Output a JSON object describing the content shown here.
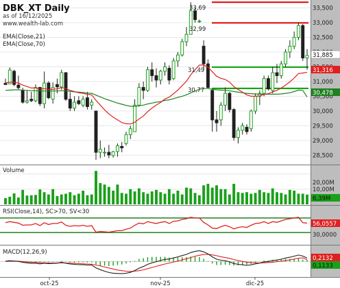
{
  "price_pane": {
    "title": "DBK_XT Daily",
    "date_note": "as of 16/12/2025",
    "watermark": "www.wealth-lab.com",
    "legend": [
      "EMA(Close,21)",
      "EMA(Close,70)"
    ],
    "level_labels": [
      "33,69",
      "32,99",
      "31,49",
      "30,77"
    ],
    "axis_ticks": [
      "33,500",
      "33,000",
      "32,500",
      "32,000",
      "31,500",
      "31,000",
      "30,500",
      "30,000",
      "29,500",
      "29,000",
      "28,500"
    ],
    "price_badge": "31,885",
    "ema21_badge": "31,316",
    "ema70_badge": "30,478"
  },
  "volume_pane": {
    "label": "Volume",
    "tick": "20,00M",
    "tick2": "10,00M",
    "badge": "6,39M"
  },
  "rsi_pane": {
    "label": "RSI(Close,14), SC>70, SV<30",
    "tick": "30,0000",
    "badge": "56,0557"
  },
  "macd_pane": {
    "label": "MACD(12,26,9)",
    "badge_macd": "0,2132",
    "badge_signal": "0,1133"
  },
  "x_axis": {
    "labels": [
      "oct-25",
      "nov-25",
      "dic-25"
    ]
  },
  "colors": {
    "up": "#1aa01a",
    "down": "#202020",
    "ema21": "#e02020",
    "ema70": "#208020",
    "level_red": "#e00000",
    "level_green": "#00a000",
    "volume": "#1aa01a",
    "rsi": "#e02020",
    "rsi_band": "#208020",
    "macd": "#202020",
    "signal": "#e02020",
    "hist": "#1aa01a",
    "axis_bg": "#bdbdbd"
  },
  "chart_data": {
    "type": "candlestick",
    "title": "DBK_XT Daily",
    "y_range": [
      28300,
      33650
    ],
    "candles": [
      {
        "o": 30940,
        "h": 31100,
        "l": 30880,
        "c": 30900
      },
      {
        "o": 30920,
        "h": 31480,
        "l": 30950,
        "c": 31390
      },
      {
        "o": 31350,
        "h": 31400,
        "l": 30840,
        "c": 30900
      },
      {
        "o": 30880,
        "h": 31200,
        "l": 30740,
        "c": 30790
      },
      {
        "o": 30700,
        "h": 30790,
        "l": 30250,
        "c": 30300
      },
      {
        "o": 30300,
        "h": 30690,
        "l": 30250,
        "c": 30350
      },
      {
        "o": 30400,
        "h": 30650,
        "l": 30300,
        "c": 30350
      },
      {
        "o": 30350,
        "h": 30900,
        "l": 30300,
        "c": 30800
      },
      {
        "o": 30800,
        "h": 30820,
        "l": 30170,
        "c": 30250
      },
      {
        "o": 30250,
        "h": 31340,
        "l": 30090,
        "c": 30950
      },
      {
        "o": 30950,
        "h": 31010,
        "l": 30400,
        "c": 30450
      },
      {
        "o": 30400,
        "h": 30970,
        "l": 30250,
        "c": 30800
      },
      {
        "o": 30900,
        "h": 31100,
        "l": 30600,
        "c": 30820
      },
      {
        "o": 30820,
        "h": 31400,
        "l": 30720,
        "c": 31300
      },
      {
        "o": 31300,
        "h": 31320,
        "l": 30340,
        "c": 30400
      },
      {
        "o": 30400,
        "h": 30640,
        "l": 30000,
        "c": 30100
      },
      {
        "o": 30100,
        "h": 30500,
        "l": 30000,
        "c": 30300
      },
      {
        "o": 30350,
        "h": 30500,
        "l": 30200,
        "c": 30250
      },
      {
        "o": 30200,
        "h": 30500,
        "l": 30130,
        "c": 30400
      },
      {
        "o": 30450,
        "h": 30650,
        "l": 30050,
        "c": 30150
      },
      {
        "o": 30200,
        "h": 30400,
        "l": 30050,
        "c": 30300
      },
      {
        "o": 30000,
        "h": 30010,
        "l": 28340,
        "c": 28600
      },
      {
        "o": 28600,
        "h": 29000,
        "l": 28400,
        "c": 28700
      },
      {
        "o": 28600,
        "h": 28760,
        "l": 28450,
        "c": 28600
      },
      {
        "o": 28600,
        "h": 28850,
        "l": 28400,
        "c": 28510
      },
      {
        "o": 28490,
        "h": 28650,
        "l": 28420,
        "c": 28620
      },
      {
        "o": 28630,
        "h": 28900,
        "l": 28450,
        "c": 28820
      },
      {
        "o": 28800,
        "h": 28950,
        "l": 28600,
        "c": 28750
      },
      {
        "o": 28900,
        "h": 29300,
        "l": 28830,
        "c": 29200
      },
      {
        "o": 29200,
        "h": 29500,
        "l": 29050,
        "c": 29400
      },
      {
        "o": 29300,
        "h": 30400,
        "l": 29290,
        "c": 30200
      },
      {
        "o": 30200,
        "h": 30950,
        "l": 30150,
        "c": 30800
      },
      {
        "o": 30800,
        "h": 31000,
        "l": 30400,
        "c": 30700
      },
      {
        "o": 30700,
        "h": 31500,
        "l": 30650,
        "c": 31400
      },
      {
        "o": 31400,
        "h": 31650,
        "l": 31000,
        "c": 31200
      },
      {
        "o": 31200,
        "h": 31450,
        "l": 30800,
        "c": 31050
      },
      {
        "o": 31050,
        "h": 31400,
        "l": 30900,
        "c": 31350
      },
      {
        "o": 31350,
        "h": 31650,
        "l": 31200,
        "c": 31500
      },
      {
        "o": 31450,
        "h": 31550,
        "l": 30900,
        "c": 31050
      },
      {
        "o": 31100,
        "h": 31800,
        "l": 31050,
        "c": 31700
      },
      {
        "o": 31700,
        "h": 32000,
        "l": 31500,
        "c": 31900
      },
      {
        "o": 31900,
        "h": 32450,
        "l": 31850,
        "c": 32350
      },
      {
        "o": 32350,
        "h": 32850,
        "l": 32200,
        "c": 32600
      },
      {
        "o": 32600,
        "h": 33690,
        "l": 32600,
        "c": 33400
      },
      {
        "o": 33400,
        "h": 33500,
        "l": 33000,
        "c": 33100
      },
      {
        "o": 33050,
        "h": 33100,
        "l": 32990,
        "c": 33050
      },
      {
        "o": 32200,
        "h": 32400,
        "l": 31400,
        "c": 31600
      },
      {
        "o": 31600,
        "h": 31750,
        "l": 30770,
        "c": 30800
      },
      {
        "o": 30700,
        "h": 30750,
        "l": 29300,
        "c": 29700
      },
      {
        "o": 29700,
        "h": 30000,
        "l": 29300,
        "c": 29600
      },
      {
        "o": 29700,
        "h": 30300,
        "l": 29500,
        "c": 30200
      },
      {
        "o": 30200,
        "h": 30800,
        "l": 30000,
        "c": 30600
      },
      {
        "o": 30600,
        "h": 30650,
        "l": 29950,
        "c": 30050
      },
      {
        "o": 30050,
        "h": 30100,
        "l": 29000,
        "c": 29100
      },
      {
        "o": 29100,
        "h": 29450,
        "l": 28900,
        "c": 29350
      },
      {
        "o": 29350,
        "h": 29600,
        "l": 29200,
        "c": 29500
      },
      {
        "o": 29450,
        "h": 29550,
        "l": 29200,
        "c": 29300
      },
      {
        "o": 29400,
        "h": 30050,
        "l": 29300,
        "c": 30000
      },
      {
        "o": 30000,
        "h": 30600,
        "l": 29900,
        "c": 30500
      },
      {
        "o": 30500,
        "h": 30700,
        "l": 30200,
        "c": 30600
      },
      {
        "o": 30600,
        "h": 31200,
        "l": 30500,
        "c": 31100
      },
      {
        "o": 31100,
        "h": 31200,
        "l": 30700,
        "c": 30750
      },
      {
        "o": 30700,
        "h": 31500,
        "l": 30600,
        "c": 31300
      },
      {
        "o": 31300,
        "h": 31600,
        "l": 30950,
        "c": 31200
      },
      {
        "o": 31200,
        "h": 31700,
        "l": 31100,
        "c": 31600
      },
      {
        "o": 31600,
        "h": 32100,
        "l": 31500,
        "c": 32000
      },
      {
        "o": 32000,
        "h": 32400,
        "l": 31800,
        "c": 32200
      },
      {
        "o": 32200,
        "h": 32700,
        "l": 32100,
        "c": 32500
      },
      {
        "o": 32500,
        "h": 33000,
        "l": 32400,
        "c": 32900
      },
      {
        "o": 32900,
        "h": 32950,
        "l": 31700,
        "c": 31800
      },
      {
        "o": 31800,
        "h": 32100,
        "l": 31400,
        "c": 31885
      }
    ],
    "ema21": [
      30950,
      30980,
      30970,
      30950,
      30880,
      30830,
      30780,
      30790,
      30740,
      30760,
      30730,
      30740,
      30750,
      30800,
      30760,
      30700,
      30660,
      30620,
      30600,
      30570,
      30550,
      30360,
      30200,
      30040,
      29900,
      29790,
      29700,
      29610,
      29570,
      29560,
      29620,
      29730,
      29830,
      29980,
      30100,
      30200,
      30290,
      30410,
      30470,
      30590,
      30710,
      30860,
      31010,
      31230,
      31400,
      31560,
      31560,
      31490,
      31330,
      31180,
      31110,
      31070,
      30980,
      30830,
      30730,
      30640,
      30550,
      30500,
      30500,
      30510,
      30570,
      30590,
      30650,
      30700,
      30780,
      30880,
      30990,
      31120,
      31270,
      31290,
      31316
    ],
    "ema70": [
      30700,
      30710,
      30720,
      30720,
      30710,
      30700,
      30690,
      30690,
      30680,
      30680,
      30680,
      30680,
      30680,
      30690,
      30680,
      30670,
      30650,
      30640,
      30630,
      30610,
      30600,
      30540,
      30480,
      30420,
      30370,
      30320,
      30270,
      30230,
      30190,
      30160,
      30160,
      30180,
      30200,
      30240,
      30270,
      30300,
      30320,
      30360,
      30380,
      30420,
      30460,
      30500,
      30550,
      30620,
      30680,
      30740,
      30760,
      30760,
      30740,
      30720,
      30710,
      30700,
      30690,
      30660,
      30640,
      30620,
      30600,
      30590,
      30580,
      30570,
      30570,
      30570,
      30570,
      30570,
      30580,
      30600,
      30620,
      30660,
      30710,
      30700,
      30478
    ],
    "volume": [
      4.1,
      5.0,
      7.2,
      4.5,
      9.5,
      5.8,
      6.0,
      6.2,
      9.8,
      8.0,
      6.5,
      10.0,
      5.5,
      6.5,
      7.0,
      8.0,
      6.0,
      7.0,
      9.0,
      6.0,
      6.5,
      22.0,
      14.0,
      13.0,
      11.5,
      9.0,
      13.0,
      7.5,
      7.0,
      10.0,
      8.5,
      10.5,
      8.0,
      7.0,
      8.5,
      9.5,
      8.0,
      7.0,
      10.0,
      7.0,
      9.0,
      6.5,
      11.0,
      10.5,
      7.5,
      6.0,
      12.5,
      13.5,
      11.0,
      12.5,
      10.0,
      10.0,
      6.5,
      13.5,
      8.0,
      7.5,
      8.0,
      7.0,
      7.5,
      9.5,
      8.0,
      7.5,
      10.5,
      8.0,
      7.5,
      6.5,
      9.5,
      9.0,
      7.0,
      7.0,
      6.39
    ],
    "rsi": [
      57,
      60,
      58,
      56,
      50,
      51,
      51,
      55,
      49,
      57,
      52,
      55,
      55,
      59,
      50,
      47,
      49,
      48,
      50,
      47,
      49,
      31,
      33,
      32,
      31,
      33,
      35,
      35,
      39,
      42,
      50,
      56,
      54,
      60,
      57,
      55,
      58,
      60,
      55,
      61,
      62,
      66,
      68,
      72,
      70,
      70,
      58,
      51,
      42,
      41,
      46,
      50,
      46,
      40,
      44,
      46,
      44,
      50,
      55,
      56,
      60,
      55,
      60,
      58,
      62,
      66,
      68,
      70,
      72,
      57,
      56.06
    ],
    "macd": [
      0.02,
      0.05,
      0.03,
      0.01,
      -0.05,
      -0.08,
      -0.11,
      -0.1,
      -0.14,
      -0.1,
      -0.13,
      -0.11,
      -0.1,
      -0.05,
      -0.1,
      -0.15,
      -0.17,
      -0.19,
      -0.19,
      -0.21,
      -0.21,
      -0.38,
      -0.49,
      -0.58,
      -0.66,
      -0.7,
      -0.72,
      -0.73,
      -0.7,
      -0.65,
      -0.54,
      -0.4,
      -0.3,
      -0.17,
      -0.08,
      -0.01,
      0.06,
      0.13,
      0.15,
      0.22,
      0.28,
      0.36,
      0.43,
      0.54,
      0.61,
      0.65,
      0.58,
      0.46,
      0.28,
      0.14,
      0.08,
      0.05,
      -0.02,
      -0.12,
      -0.17,
      -0.2,
      -0.23,
      -0.2,
      -0.14,
      -0.09,
      -0.02,
      0.0,
      0.06,
      0.09,
      0.14,
      0.21,
      0.26,
      0.32,
      0.39,
      0.33,
      0.2132
    ],
    "signal": [
      0.01,
      0.02,
      0.02,
      0.02,
      0.0,
      -0.02,
      -0.04,
      -0.05,
      -0.07,
      -0.08,
      -0.09,
      -0.09,
      -0.09,
      -0.08,
      -0.09,
      -0.1,
      -0.11,
      -0.13,
      -0.14,
      -0.15,
      -0.16,
      -0.21,
      -0.26,
      -0.33,
      -0.39,
      -0.45,
      -0.51,
      -0.55,
      -0.58,
      -0.6,
      -0.58,
      -0.55,
      -0.5,
      -0.43,
      -0.36,
      -0.29,
      -0.22,
      -0.15,
      -0.09,
      -0.03,
      0.03,
      0.1,
      0.17,
      0.24,
      0.32,
      0.38,
      0.42,
      0.43,
      0.4,
      0.35,
      0.29,
      0.24,
      0.19,
      0.12,
      0.06,
      0.01,
      -0.04,
      -0.07,
      -0.08,
      -0.09,
      -0.08,
      -0.06,
      -0.04,
      -0.01,
      0.02,
      0.06,
      0.1,
      0.15,
      0.2,
      0.22,
      0.1133
    ]
  }
}
